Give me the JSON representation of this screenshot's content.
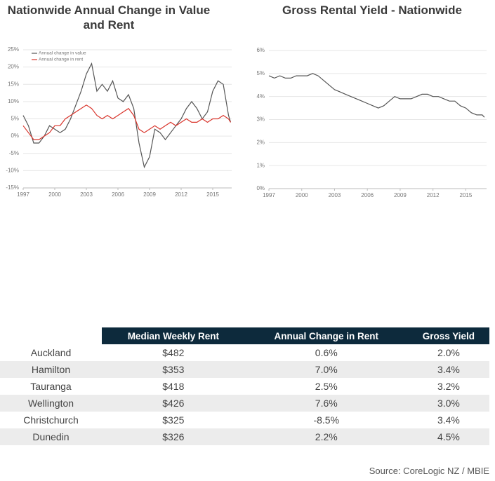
{
  "chart_data": [
    {
      "type": "line",
      "title": "Nationwide Annual Change in Value and Rent",
      "x": [
        1997,
        1997.5,
        1998,
        1998.5,
        1999,
        1999.5,
        2000,
        2000.5,
        2001,
        2001.5,
        2002,
        2002.5,
        2003,
        2003.5,
        2004,
        2004.5,
        2005,
        2005.5,
        2006,
        2006.5,
        2007,
        2007.5,
        2008,
        2008.5,
        2009,
        2009.5,
        2010,
        2010.5,
        2011,
        2011.5,
        2012,
        2012.5,
        2013,
        2013.5,
        2014,
        2014.5,
        2015,
        2015.5,
        2016,
        2016.5,
        2016.7
      ],
      "series": [
        {
          "name": "Annual change in value",
          "color": "#555555",
          "values": [
            6,
            3,
            -2,
            -2,
            0,
            3,
            2,
            1,
            2,
            5,
            9,
            13,
            18,
            21,
            13,
            15,
            13,
            16,
            11,
            10,
            12,
            8,
            -2,
            -9,
            -6,
            2,
            1,
            -1,
            1,
            3,
            5,
            8,
            10,
            8,
            5,
            7,
            13,
            16,
            15,
            6,
            4
          ]
        },
        {
          "name": "Annual change in rent",
          "color": "#d9342b",
          "values": [
            3,
            1,
            -1,
            -1,
            0,
            1,
            3,
            3,
            5,
            6,
            7,
            8,
            9,
            8,
            6,
            5,
            6,
            5,
            6,
            7,
            8,
            6,
            2,
            1,
            2,
            3,
            2,
            3,
            4,
            3,
            4,
            5,
            4,
            4,
            5,
            4,
            5,
            5,
            6,
            5,
            4
          ]
        }
      ],
      "xlim": [
        1997,
        2016.8
      ],
      "xticks": [
        1997,
        2000,
        2003,
        2006,
        2009,
        2012,
        2015
      ],
      "ylim": [
        -15,
        25
      ],
      "yticks": [
        {
          "value": -15,
          "label": "-15%"
        },
        {
          "value": -10,
          "label": "-10%"
        },
        {
          "value": -5,
          "label": "-5%"
        },
        {
          "value": 0,
          "label": "0%"
        },
        {
          "value": 5,
          "label": "5%"
        },
        {
          "value": 10,
          "label": "10%"
        },
        {
          "value": 15,
          "label": "15%"
        },
        {
          "value": 20,
          "label": "20%"
        },
        {
          "value": 25,
          "label": "25%"
        }
      ],
      "grid": true,
      "legend": "top-left"
    },
    {
      "type": "line",
      "title": "Gross Rental Yield - Nationwide",
      "x": [
        1997,
        1997.5,
        1998,
        1998.5,
        1999,
        1999.5,
        2000,
        2000.5,
        2001,
        2001.5,
        2002,
        2002.5,
        2003,
        2003.5,
        2004,
        2004.5,
        2005,
        2005.5,
        2006,
        2006.5,
        2007,
        2007.5,
        2008,
        2008.5,
        2009,
        2009.5,
        2010,
        2010.5,
        2011,
        2011.5,
        2012,
        2012.5,
        2013,
        2013.5,
        2014,
        2014.5,
        2015,
        2015.5,
        2016,
        2016.5,
        2016.7
      ],
      "values": [
        4.9,
        4.8,
        4.9,
        4.8,
        4.8,
        4.9,
        4.9,
        4.9,
        5.0,
        4.9,
        4.7,
        4.5,
        4.3,
        4.2,
        4.1,
        4.0,
        3.9,
        3.8,
        3.7,
        3.6,
        3.5,
        3.6,
        3.8,
        4.0,
        3.9,
        3.9,
        3.9,
        4.0,
        4.1,
        4.1,
        4.0,
        4.0,
        3.9,
        3.8,
        3.8,
        3.6,
        3.5,
        3.3,
        3.2,
        3.2,
        3.1
      ],
      "color": "#555555",
      "xlim": [
        1997,
        2016.9
      ],
      "xticks": [
        1997,
        2000,
        2003,
        2006,
        2009,
        2012,
        2015
      ],
      "ylim": [
        0,
        6
      ],
      "yticks": [
        {
          "value": 0,
          "label": "0%"
        },
        {
          "value": 1,
          "label": "1%"
        },
        {
          "value": 2,
          "label": "2%"
        },
        {
          "value": 3,
          "label": "3%"
        },
        {
          "value": 4,
          "label": "4%"
        },
        {
          "value": 5,
          "label": "5%"
        },
        {
          "value": 6,
          "label": "6%"
        }
      ],
      "grid": true
    }
  ],
  "table": {
    "columns": [
      "Median Weekly Rent",
      "Annual Change in Rent",
      "Gross Yield"
    ],
    "rows": [
      [
        "Auckland",
        "$482",
        "0.6%",
        "2.0%"
      ],
      [
        "Hamilton",
        "$353",
        "7.0%",
        "3.4%"
      ],
      [
        "Tauranga",
        "$418",
        "2.5%",
        "3.2%"
      ],
      [
        "Wellington",
        "$426",
        "7.6%",
        "3.0%"
      ],
      [
        "Christchurch",
        "$325",
        "-8.5%",
        "3.4%"
      ],
      [
        "Dunedin",
        "$326",
        "2.2%",
        "4.5%"
      ]
    ]
  },
  "source": "Source: CoreLogic NZ / MBIE"
}
